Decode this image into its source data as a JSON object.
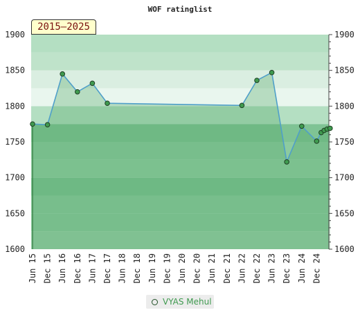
{
  "chart_data": {
    "type": "line",
    "title": "WOF ratinglist",
    "period_label": "2015–2025",
    "x_tick_labels": [
      "Jun 15",
      "Dec 15",
      "Jun 16",
      "Dec 16",
      "Jun 17",
      "Dec 17",
      "Jun 18",
      "Dec 18",
      "Jun 19",
      "Dec 19",
      "Jun 20",
      "Dec 20",
      "Jun 21",
      "Dec 21",
      "Jun 22",
      "Dec 22",
      "Jun 23",
      "Dec 23",
      "Jun 24",
      "Dec 24"
    ],
    "y_ticks": [
      1600,
      1650,
      1700,
      1750,
      1800,
      1850,
      1900
    ],
    "ylim": [
      1600,
      1900
    ],
    "legend_position": "bottom",
    "series": [
      {
        "name": "VYAS Mehul",
        "color": "#3f9a4f",
        "line_color": "#4f9fc9",
        "x": [
          0,
          1,
          2,
          3,
          4,
          5,
          14,
          15,
          16,
          17,
          18,
          19,
          19.3,
          19.5,
          19.7,
          19.9
        ],
        "values": [
          1775,
          1774,
          1845,
          1820,
          1832,
          1804,
          1801,
          1836,
          1847,
          1722,
          1772,
          1751,
          1763,
          1766,
          1768,
          1769
        ]
      }
    ]
  }
}
